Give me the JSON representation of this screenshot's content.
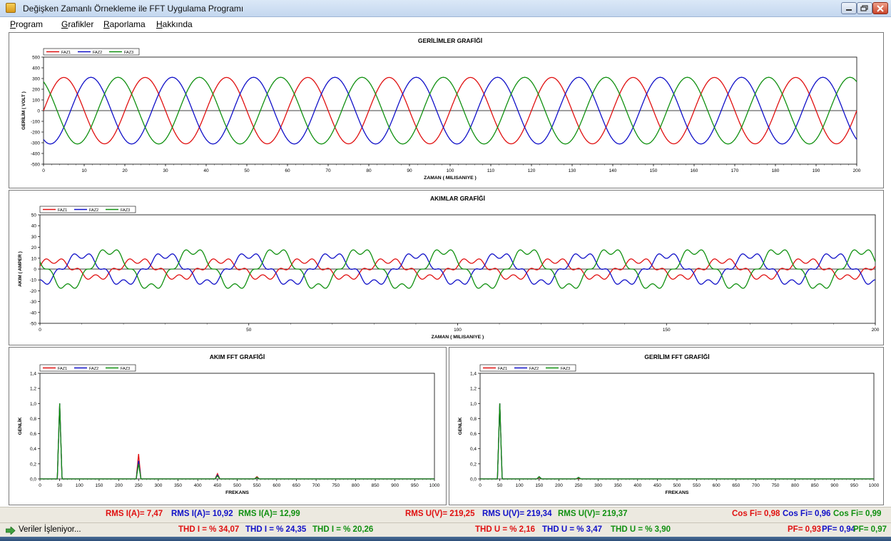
{
  "window": {
    "title": "Değişken Zamanlı Örnekleme ile  FFT Uygulama Programı"
  },
  "menu": [
    {
      "accel": "P",
      "rest": "rogram"
    },
    {
      "accel": "G",
      "rest": "rafikler"
    },
    {
      "accel": "R",
      "rest": "aporlama"
    },
    {
      "accel": "H",
      "rest": "akkında"
    }
  ],
  "colors": {
    "faz1": "#e01010",
    "faz2": "#1010c8",
    "faz3": "#109010"
  },
  "chart_data": [
    {
      "type": "line",
      "title": "GERİLİMLER GRAFİĞİ",
      "xlabel": "ZAMAN ( MILISANIYE )",
      "ylabel": "GERİLİM ( VOLT )",
      "xlim": [
        0,
        200
      ],
      "ylim": [
        -500,
        500
      ],
      "xticks": [
        0,
        10,
        20,
        30,
        40,
        50,
        60,
        70,
        80,
        90,
        100,
        110,
        120,
        130,
        140,
        150,
        160,
        170,
        180,
        190,
        200
      ],
      "yticks": [
        -500,
        -400,
        -300,
        -200,
        -100,
        0,
        100,
        200,
        300,
        400,
        500
      ],
      "legend": "top-left",
      "grid": false,
      "series": [
        {
          "name": "FAZ1",
          "amplitude": 310,
          "frequency_hz": 50,
          "phase_deg": 0
        },
        {
          "name": "FAZ2",
          "amplitude": 311,
          "frequency_hz": 50,
          "phase_deg": -120
        },
        {
          "name": "FAZ3",
          "amplitude": 311,
          "frequency_hz": 50,
          "phase_deg": 120
        }
      ]
    },
    {
      "type": "line",
      "title": "AKIMLAR GRAFİĞİ",
      "xlabel": "ZAMAN ( MILISANIYE )",
      "ylabel": "AKIM ( AMPER )",
      "xlim": [
        0,
        200
      ],
      "ylim": [
        -50,
        50
      ],
      "xticks": [
        0,
        50,
        100,
        150,
        200
      ],
      "yticks": [
        -50,
        -40,
        -30,
        -20,
        -10,
        0,
        10,
        20,
        30,
        40,
        50
      ],
      "legend": "top-left",
      "grid": false,
      "series": [
        {
          "name": "FAZ1",
          "fundamental": 8,
          "h5_ratio": 0.34,
          "phase_deg": 30
        },
        {
          "name": "FAZ2",
          "fundamental": 13,
          "h5_ratio": 0.24,
          "phase_deg": -90
        },
        {
          "name": "FAZ3",
          "fundamental": 17,
          "h5_ratio": 0.2,
          "phase_deg": 150
        }
      ]
    },
    {
      "type": "line",
      "title": "AKIM FFT GRAFİĞİ",
      "xlabel": "FREKANS",
      "ylabel": "GENLİK",
      "xlim": [
        0,
        1000
      ],
      "ylim": [
        0,
        1.4
      ],
      "xticks": [
        0,
        50,
        100,
        150,
        200,
        250,
        300,
        350,
        400,
        450,
        500,
        550,
        600,
        650,
        700,
        750,
        800,
        850,
        900,
        950,
        1000
      ],
      "yticks": [
        "0,0",
        "0,2",
        "0,4",
        "0,6",
        "0,8",
        "1,0",
        "1,2",
        "1,4"
      ],
      "legend": "top-left",
      "grid": false,
      "series": [
        {
          "name": "FAZ1",
          "peaks": [
            [
              50,
              1.0
            ],
            [
              250,
              0.33
            ],
            [
              450,
              0.07
            ],
            [
              550,
              0.03
            ]
          ]
        },
        {
          "name": "FAZ2",
          "peaks": [
            [
              50,
              1.0
            ],
            [
              250,
              0.24
            ],
            [
              450,
              0.05
            ],
            [
              550,
              0.02
            ]
          ]
        },
        {
          "name": "FAZ3",
          "peaks": [
            [
              50,
              1.0
            ],
            [
              250,
              0.2
            ],
            [
              450,
              0.04
            ],
            [
              550,
              0.02
            ]
          ]
        }
      ]
    },
    {
      "type": "line",
      "title": "GERİLİM FFT GRAFİĞİ",
      "xlabel": "FREKANS",
      "ylabel": "GENLİK",
      "xlim": [
        0,
        1000
      ],
      "ylim": [
        0,
        1.4
      ],
      "xticks": [
        0,
        50,
        100,
        150,
        200,
        250,
        300,
        350,
        400,
        450,
        500,
        550,
        600,
        650,
        700,
        750,
        800,
        850,
        900,
        950,
        1000
      ],
      "yticks": [
        "0,0",
        "0,2",
        "0,4",
        "0,6",
        "0,8",
        "1,0",
        "1,2",
        "1,4"
      ],
      "legend": "top-left",
      "grid": false,
      "series": [
        {
          "name": "FAZ1",
          "peaks": [
            [
              50,
              1.0
            ],
            [
              150,
              0.02
            ],
            [
              250,
              0.01
            ]
          ]
        },
        {
          "name": "FAZ2",
          "peaks": [
            [
              50,
              1.0
            ],
            [
              150,
              0.03
            ],
            [
              250,
              0.02
            ]
          ]
        },
        {
          "name": "FAZ3",
          "peaks": [
            [
              50,
              1.0
            ],
            [
              150,
              0.03
            ],
            [
              250,
              0.02
            ]
          ]
        }
      ]
    }
  ],
  "status": {
    "rms_i": [
      "RMS I(A)= 7,47",
      "RMS I(A)= 10,92",
      "RMS I(A)= 12,99"
    ],
    "rms_u": [
      "RMS U(V)= 219,25",
      "RMS U(V)= 219,34",
      "RMS U(V)= 219,37"
    ],
    "cos_fi": [
      "Cos Fi= 0,98",
      "Cos Fi= 0,96",
      "Cos Fi= 0,99"
    ],
    "thd_i": [
      "THD I = % 34,07",
      "THD I = % 24,35",
      "THD I = % 20,26"
    ],
    "thd_u": [
      "THD U = % 2,16",
      "THD U = % 3,47",
      "THD U = % 3,90"
    ],
    "pf": [
      "PF= 0,93",
      "PF= 0,94",
      "PF= 0,97"
    ],
    "process_text": "Veriler İşleniyor..."
  }
}
